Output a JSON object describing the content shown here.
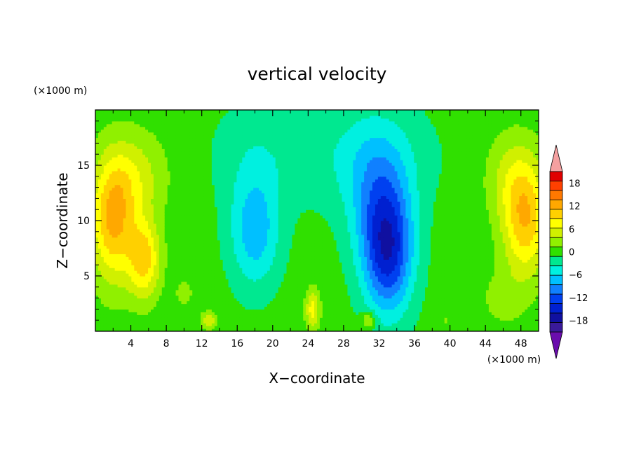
{
  "chart_data": {
    "type": "heatmap",
    "title": "vertical velocity",
    "xlabel": "X−coordinate",
    "ylabel": "Z−coordinate",
    "x_units": "(×1000 m)",
    "y_units": "(×1000 m)",
    "xlim": [
      0,
      50
    ],
    "ylim": [
      0,
      20
    ],
    "x_ticks": [
      4,
      8,
      12,
      16,
      20,
      24,
      28,
      32,
      36,
      40,
      44,
      48
    ],
    "y_ticks": [
      5,
      10,
      15
    ],
    "colorbar": {
      "levels": [
        -21,
        -18,
        -15,
        -12,
        -9,
        -6,
        -3,
        0,
        3,
        6,
        9,
        12,
        15,
        18
      ],
      "tick_labels": [
        "18",
        "12",
        "6",
        "0",
        "−6",
        "−12",
        "−18"
      ],
      "tick_values": [
        18,
        12,
        6,
        0,
        -6,
        -12,
        -18
      ],
      "colors": [
        "#6a0dad",
        "#3a1a9a",
        "#1010a0",
        "#0020d0",
        "#0040f0",
        "#1080ff",
        "#00c0ff",
        "#00f0e0",
        "#00e890",
        "#30e000",
        "#90f000",
        "#d0f000",
        "#ffff00",
        "#ffd000",
        "#ffa800",
        "#ff7800",
        "#ff4000",
        "#e00000",
        "#f4a0a0"
      ],
      "extend": "both"
    },
    "features": [
      {
        "x": 2,
        "z": 10,
        "value": 14,
        "sx": 2.5,
        "sz": 5.5
      },
      {
        "x": 5.5,
        "z": 6.5,
        "value": 12,
        "sx": 1.8,
        "sz": 3.5
      },
      {
        "x": 4.5,
        "z": 14,
        "value": 6,
        "sx": 3.5,
        "sz": 4
      },
      {
        "x": 48.5,
        "z": 10,
        "value": 13,
        "sx": 2.5,
        "sz": 5
      },
      {
        "x": 47,
        "z": 14,
        "value": 5,
        "sx": 3,
        "sz": 4
      },
      {
        "x": 46,
        "z": 3,
        "value": 3,
        "sx": 2.5,
        "sz": 2.5
      },
      {
        "x": 18,
        "z": 9,
        "value": -9,
        "sx": 2.8,
        "sz": 5
      },
      {
        "x": 33,
        "z": 7,
        "value": -16,
        "sx": 2.8,
        "sz": 5.5
      },
      {
        "x": 32,
        "z": 12,
        "value": -8,
        "sx": 3.5,
        "sz": 6
      },
      {
        "x": 30,
        "z": 16,
        "value": -4,
        "sx": 8,
        "sz": 5
      },
      {
        "x": 18,
        "z": 16,
        "value": -3,
        "sx": 5,
        "sz": 5
      },
      {
        "x": 24.5,
        "z": 2,
        "value": 9,
        "sx": 0.8,
        "sz": 1.8
      },
      {
        "x": 12.8,
        "z": 1,
        "value": 7,
        "sx": 0.9,
        "sz": 0.8
      },
      {
        "x": 30.8,
        "z": 1,
        "value": 7,
        "sx": 0.8,
        "sz": 0.8
      },
      {
        "x": 10,
        "z": 3.5,
        "value": 4,
        "sx": 0.9,
        "sz": 1
      },
      {
        "x": 39.5,
        "z": 1,
        "value": 2,
        "sx": 0.8,
        "sz": 0.8
      }
    ]
  }
}
